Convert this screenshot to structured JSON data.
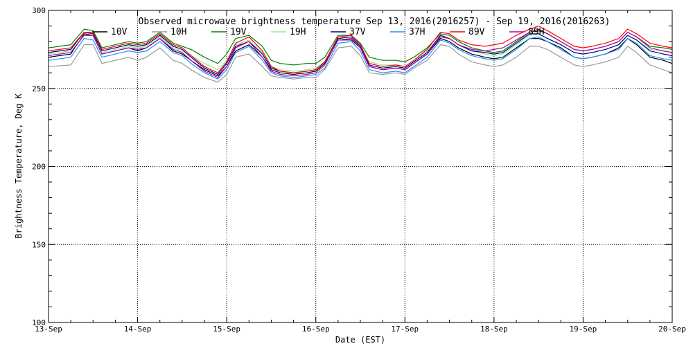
{
  "chart_data": {
    "type": "line",
    "title": "Observed microwave brightness temperature Sep 13, 2016(2016257) - Sep 19, 2016(2016263)",
    "xlabel": "Date (EST)",
    "ylabel": "Brightness Temperature, Deg K",
    "xlim": [
      "2016-09-13",
      "2016-09-20"
    ],
    "ylim": [
      100,
      300
    ],
    "x_ticks": [
      "13-Sep",
      "14-Sep",
      "15-Sep",
      "16-Sep",
      "17-Sep",
      "18-Sep",
      "19-Sep",
      "20-Sep"
    ],
    "y_ticks": [
      100,
      150,
      200,
      250,
      300
    ],
    "grid": true,
    "legend_position": "top",
    "x": [
      0.0,
      0.25,
      0.4,
      0.5,
      0.6,
      0.75,
      0.9,
      1.0,
      1.1,
      1.25,
      1.4,
      1.5,
      1.6,
      1.75,
      1.9,
      2.0,
      2.1,
      2.25,
      2.4,
      2.5,
      2.6,
      2.75,
      2.9,
      3.0,
      3.1,
      3.25,
      3.4,
      3.5,
      3.6,
      3.75,
      3.9,
      4.0,
      4.1,
      4.25,
      4.4,
      4.5,
      4.6,
      4.75,
      4.9,
      5.0,
      5.1,
      5.25,
      5.4,
      5.5,
      5.6,
      5.75,
      5.9,
      6.0,
      6.1,
      6.25,
      6.4,
      6.5,
      6.6,
      6.75,
      6.9,
      7.0
    ],
    "series": [
      {
        "name": "10V",
        "color": "#000000",
        "values": [
          270,
          272,
          285,
          284,
          272,
          274,
          276,
          274,
          276,
          282,
          274,
          272,
          268,
          262,
          258,
          264,
          274,
          278,
          270,
          262,
          260,
          259,
          260,
          261,
          266,
          281,
          281,
          276,
          264,
          262,
          263,
          262,
          266,
          272,
          282,
          280,
          276,
          272,
          270,
          269,
          270,
          276,
          282,
          282,
          280,
          276,
          270,
          269,
          270,
          272,
          276,
          282,
          278,
          270,
          268,
          266
        ]
      },
      {
        "name": "10H",
        "color": "#9a9a9a",
        "values": [
          264,
          265,
          278,
          278,
          266,
          268,
          270,
          268,
          270,
          276,
          268,
          266,
          262,
          257,
          254,
          259,
          270,
          272,
          264,
          258,
          257,
          256,
          257,
          257,
          262,
          276,
          277,
          271,
          260,
          259,
          260,
          259,
          263,
          268,
          278,
          277,
          272,
          267,
          265,
          264,
          265,
          270,
          277,
          277,
          275,
          270,
          265,
          264,
          265,
          267,
          270,
          277,
          273,
          265,
          262,
          260
        ]
      },
      {
        "name": "19V",
        "color": "#008000",
        "values": [
          276,
          278,
          288,
          287,
          276,
          278,
          280,
          279,
          280,
          286,
          279,
          277,
          275,
          270,
          266,
          272,
          282,
          284,
          277,
          268,
          266,
          265,
          266,
          266,
          270,
          284,
          284,
          279,
          270,
          268,
          268,
          267,
          270,
          276,
          285,
          284,
          280,
          276,
          274,
          273,
          274,
          280,
          286,
          287,
          285,
          280,
          275,
          274,
          275,
          277,
          280,
          286,
          283,
          277,
          276,
          275
        ]
      },
      {
        "name": "19H",
        "color": "#90ee90",
        "values": [
          272,
          274,
          284,
          284,
          273,
          275,
          277,
          276,
          277,
          283,
          276,
          274,
          271,
          266,
          262,
          268,
          278,
          281,
          273,
          264,
          262,
          261,
          262,
          263,
          267,
          281,
          282,
          276,
          267,
          265,
          265,
          264,
          268,
          274,
          283,
          282,
          278,
          274,
          272,
          271,
          272,
          278,
          284,
          285,
          282,
          278,
          273,
          272,
          273,
          275,
          278,
          284,
          281,
          275,
          274,
          273
        ]
      },
      {
        "name": "37V",
        "color": "#00008b",
        "values": [
          273,
          275,
          286,
          285,
          274,
          276,
          278,
          277,
          278,
          284,
          277,
          275,
          270,
          263,
          259,
          266,
          277,
          280,
          272,
          263,
          261,
          260,
          261,
          262,
          267,
          282,
          283,
          277,
          265,
          263,
          264,
          263,
          267,
          273,
          284,
          282,
          278,
          274,
          273,
          272,
          273,
          279,
          285,
          285,
          282,
          278,
          273,
          272,
          273,
          275,
          278,
          284,
          281,
          274,
          272,
          271
        ]
      },
      {
        "name": "37H",
        "color": "#1e90ff",
        "values": [
          268,
          270,
          282,
          281,
          270,
          272,
          274,
          273,
          274,
          280,
          273,
          271,
          266,
          260,
          256,
          262,
          273,
          277,
          268,
          260,
          258,
          257,
          258,
          259,
          263,
          279,
          280,
          274,
          262,
          260,
          261,
          260,
          264,
          270,
          281,
          279,
          275,
          271,
          269,
          268,
          269,
          275,
          282,
          283,
          280,
          275,
          270,
          269,
          270,
          272,
          275,
          282,
          279,
          271,
          269,
          268
        ]
      },
      {
        "name": "89V",
        "color": "#ff0000",
        "values": [
          274,
          276,
          286,
          286,
          275,
          277,
          279,
          278,
          279,
          285,
          278,
          276,
          271,
          264,
          260,
          267,
          279,
          283,
          274,
          264,
          261,
          260,
          261,
          262,
          267,
          283,
          284,
          278,
          266,
          264,
          265,
          264,
          268,
          275,
          286,
          285,
          281,
          278,
          277,
          278,
          279,
          284,
          288,
          290,
          287,
          282,
          277,
          276,
          277,
          279,
          282,
          288,
          285,
          279,
          277,
          276
        ]
      },
      {
        "name": "89H",
        "color": "#b000b0",
        "values": [
          271,
          273,
          284,
          284,
          272,
          274,
          276,
          275,
          276,
          282,
          275,
          273,
          268,
          261,
          257,
          264,
          276,
          280,
          270,
          261,
          259,
          258,
          259,
          260,
          265,
          281,
          282,
          276,
          264,
          262,
          263,
          262,
          266,
          272,
          283,
          282,
          278,
          275,
          274,
          275,
          276,
          281,
          286,
          288,
          285,
          280,
          275,
          274,
          275,
          277,
          280,
          286,
          283,
          276,
          274,
          273
        ]
      }
    ]
  }
}
